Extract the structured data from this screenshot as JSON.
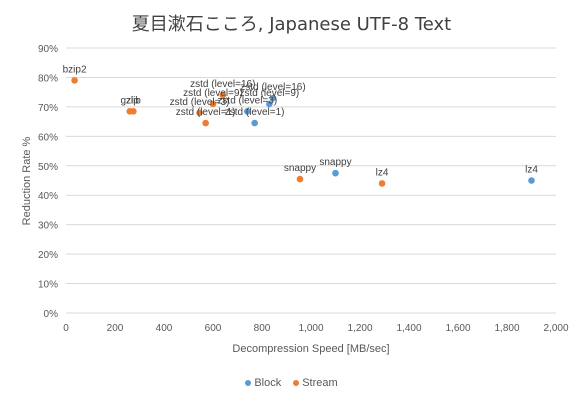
{
  "chart_data": {
    "type": "scatter",
    "title": "夏目漱石こころ, Japanese UTF-8 Text",
    "xlabel": "Decompression Speed [MB/sec]",
    "ylabel": "Reduction Rate %",
    "xlim": [
      0,
      2000
    ],
    "ylim": [
      0,
      90
    ],
    "x_ticks": [
      "0",
      "200",
      "400",
      "600",
      "800",
      "1,000",
      "1,200",
      "1,400",
      "1,600",
      "1,800",
      "2,000"
    ],
    "y_ticks": [
      "0%",
      "10%",
      "20%",
      "30%",
      "40%",
      "50%",
      "60%",
      "70%",
      "80%",
      "90%"
    ],
    "grid": "horizontal",
    "legend_position": "bottom",
    "series": [
      {
        "name": "Block",
        "color": "#5b9bd5",
        "points": [
          {
            "label": "zstd (level=16)",
            "x": 845,
            "y": 73.0
          },
          {
            "label": "zstd (level=9)",
            "x": 830,
            "y": 71.0
          },
          {
            "label": "zstd (level=3)",
            "x": 740,
            "y": 68.5
          },
          {
            "label": "zstd (level=1)",
            "x": 770,
            "y": 64.5
          },
          {
            "label": "snappy",
            "x": 1100,
            "y": 47.5
          },
          {
            "label": "lz4",
            "x": 1900,
            "y": 45.0
          }
        ]
      },
      {
        "name": "Stream",
        "color": "#ed7d31",
        "points": [
          {
            "label": "bzip2",
            "x": 35,
            "y": 79.0
          },
          {
            "label": "gzip",
            "x": 260,
            "y": 68.5
          },
          {
            "label": "zlib",
            "x": 275,
            "y": 68.5
          },
          {
            "label": "zstd (level=16)",
            "x": 640,
            "y": 74.0
          },
          {
            "label": "zstd (level=9)",
            "x": 600,
            "y": 71.0
          },
          {
            "label": "zstd (level=3)",
            "x": 545,
            "y": 68.0
          },
          {
            "label": "zstd (level=1)",
            "x": 570,
            "y": 64.5
          },
          {
            "label": "snappy",
            "x": 955,
            "y": 45.5
          },
          {
            "label": "lz4",
            "x": 1290,
            "y": 44.0
          }
        ]
      }
    ]
  }
}
